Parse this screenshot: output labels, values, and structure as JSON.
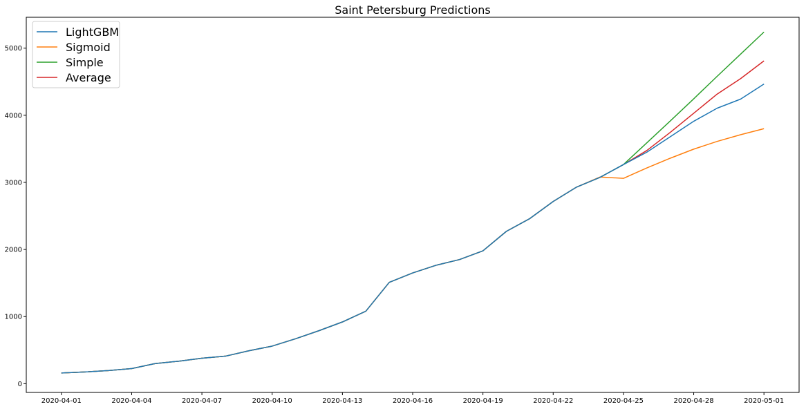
{
  "chart_data": {
    "type": "line",
    "title": "Saint Petersburg Predictions",
    "xlabel": "",
    "ylabel": "",
    "x": [
      "2020-04-01",
      "2020-04-02",
      "2020-04-03",
      "2020-04-04",
      "2020-04-05",
      "2020-04-06",
      "2020-04-07",
      "2020-04-08",
      "2020-04-09",
      "2020-04-10",
      "2020-04-11",
      "2020-04-12",
      "2020-04-13",
      "2020-04-14",
      "2020-04-15",
      "2020-04-16",
      "2020-04-17",
      "2020-04-18",
      "2020-04-19",
      "2020-04-20",
      "2020-04-21",
      "2020-04-22",
      "2020-04-23",
      "2020-04-24",
      "2020-04-25",
      "2020-04-26",
      "2020-04-27",
      "2020-04-28",
      "2020-04-29",
      "2020-04-30",
      "2020-05-01"
    ],
    "xticks": [
      "2020-04-01",
      "2020-04-04",
      "2020-04-07",
      "2020-04-10",
      "2020-04-13",
      "2020-04-16",
      "2020-04-19",
      "2020-04-22",
      "2020-04-25",
      "2020-04-28",
      "2020-05-01"
    ],
    "yticks": [
      0,
      1000,
      2000,
      3000,
      4000,
      5000
    ],
    "ylim": [
      -130,
      5460
    ],
    "xlim_days": [
      -1.5,
      31.5
    ],
    "legend_position": "top-left",
    "series": [
      {
        "name": "LightGBM",
        "color": "#1f77b4",
        "values": [
          160,
          175,
          195,
          225,
          300,
          335,
          380,
          410,
          490,
          560,
          670,
          790,
          920,
          1080,
          1510,
          1650,
          1765,
          1850,
          1980,
          2270,
          2460,
          2715,
          2930,
          3075,
          3265,
          3450,
          3680,
          3910,
          4105,
          4240,
          4465
        ]
      },
      {
        "name": "Sigmoid",
        "color": "#ff7f0e",
        "values": [
          160,
          175,
          195,
          225,
          300,
          335,
          380,
          410,
          490,
          560,
          670,
          790,
          920,
          1080,
          1510,
          1650,
          1765,
          1850,
          1980,
          2270,
          2460,
          2715,
          2930,
          3080,
          3060,
          3215,
          3360,
          3495,
          3610,
          3710,
          3800
        ]
      },
      {
        "name": "Simple",
        "color": "#2ca02c",
        "values": [
          160,
          175,
          195,
          225,
          300,
          335,
          380,
          410,
          490,
          560,
          670,
          790,
          920,
          1080,
          1510,
          1650,
          1765,
          1850,
          1980,
          2270,
          2460,
          2715,
          2930,
          3075,
          3265,
          3590,
          3915,
          4245,
          4580,
          4910,
          5240
        ]
      },
      {
        "name": "Average",
        "color": "#d62728",
        "values": [
          160,
          175,
          195,
          225,
          300,
          335,
          380,
          410,
          490,
          560,
          670,
          790,
          920,
          1080,
          1510,
          1650,
          1765,
          1850,
          1980,
          2270,
          2460,
          2715,
          2930,
          3075,
          3265,
          3475,
          3745,
          4030,
          4315,
          4545,
          4810
        ]
      }
    ]
  }
}
